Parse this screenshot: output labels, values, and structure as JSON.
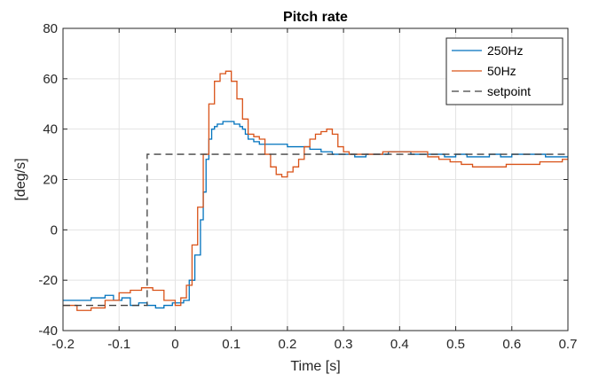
{
  "chart_data": {
    "type": "line",
    "title": "Pitch rate",
    "xlabel": "Time [s]",
    "ylabel": "[deg/s]",
    "xlim": [
      -0.2,
      0.7
    ],
    "ylim": [
      -40,
      80
    ],
    "xticks": [
      -0.2,
      -0.1,
      0,
      0.1,
      0.2,
      0.3,
      0.4,
      0.5,
      0.6,
      0.7
    ],
    "xtick_labels": [
      "-0.2",
      "-0.1",
      "0",
      "0.1",
      "0.2",
      "0.3",
      "0.4",
      "0.5",
      "0.6",
      "0.7"
    ],
    "yticks": [
      -40,
      -20,
      0,
      20,
      40,
      60,
      80
    ],
    "ytick_labels": [
      "-40",
      "-20",
      "0",
      "20",
      "40",
      "60",
      "80"
    ],
    "grid": true,
    "legend_position": "top-right",
    "series": [
      {
        "name": "250Hz",
        "color": "#0072BD",
        "style": "stairs",
        "x": [
          -0.2,
          -0.15,
          -0.125,
          -0.11,
          -0.095,
          -0.08,
          -0.065,
          -0.05,
          -0.035,
          -0.02,
          -0.005,
          0.005,
          0.015,
          0.025,
          0.035,
          0.045,
          0.05,
          0.055,
          0.06,
          0.065,
          0.07,
          0.075,
          0.08,
          0.085,
          0.09,
          0.095,
          0.1,
          0.105,
          0.11,
          0.115,
          0.12,
          0.125,
          0.13,
          0.14,
          0.15,
          0.16,
          0.18,
          0.2,
          0.22,
          0.24,
          0.26,
          0.28,
          0.3,
          0.32,
          0.34,
          0.36,
          0.38,
          0.4,
          0.42,
          0.44,
          0.46,
          0.48,
          0.5,
          0.52,
          0.54,
          0.56,
          0.58,
          0.6,
          0.62,
          0.64,
          0.66,
          0.68,
          0.7
        ],
        "y": [
          -28,
          -27,
          -26,
          -28,
          -27,
          -30,
          -29,
          -30,
          -31,
          -30,
          -29,
          -29,
          -28,
          -20,
          -10,
          4,
          15,
          28,
          36,
          40,
          41,
          42,
          42,
          43,
          43,
          43,
          43,
          42,
          42,
          41,
          40,
          38,
          36,
          35,
          34,
          34,
          34,
          33,
          33,
          32,
          31,
          30,
          30,
          29,
          30,
          30,
          31,
          31,
          30,
          30,
          30,
          29,
          30,
          29,
          29,
          30,
          29,
          30,
          30,
          30,
          29,
          29,
          29
        ]
      },
      {
        "name": "50Hz",
        "color": "#D95319",
        "style": "stairs",
        "x": [
          -0.2,
          -0.175,
          -0.15,
          -0.125,
          -0.1,
          -0.08,
          -0.06,
          -0.04,
          -0.02,
          0,
          0.01,
          0.02,
          0.03,
          0.04,
          0.05,
          0.06,
          0.07,
          0.08,
          0.09,
          0.1,
          0.11,
          0.12,
          0.13,
          0.14,
          0.15,
          0.16,
          0.17,
          0.18,
          0.19,
          0.2,
          0.21,
          0.22,
          0.23,
          0.24,
          0.25,
          0.26,
          0.27,
          0.28,
          0.29,
          0.3,
          0.31,
          0.33,
          0.35,
          0.37,
          0.39,
          0.41,
          0.43,
          0.45,
          0.47,
          0.49,
          0.51,
          0.53,
          0.55,
          0.57,
          0.59,
          0.61,
          0.63,
          0.65,
          0.67,
          0.69,
          0.7
        ],
        "y": [
          -30,
          -32,
          -31,
          -28,
          -25,
          -24,
          -23,
          -24,
          -28,
          -30,
          -27,
          -22,
          -6,
          9,
          30,
          50,
          59,
          62,
          63,
          59,
          52,
          44,
          38,
          37,
          36,
          30,
          25,
          22,
          21,
          23,
          25,
          28,
          33,
          36,
          38,
          39,
          40,
          38,
          33,
          31,
          30,
          30,
          30,
          31,
          31,
          31,
          31,
          29,
          28,
          27,
          26,
          25,
          25,
          25,
          26,
          26,
          26,
          27,
          27,
          28,
          28
        ]
      },
      {
        "name": "setpoint",
        "color": "#404040",
        "style": "dashed",
        "x": [
          -0.2,
          -0.05,
          -0.05,
          0.7
        ],
        "y": [
          -30,
          -30,
          30,
          30
        ]
      }
    ]
  }
}
